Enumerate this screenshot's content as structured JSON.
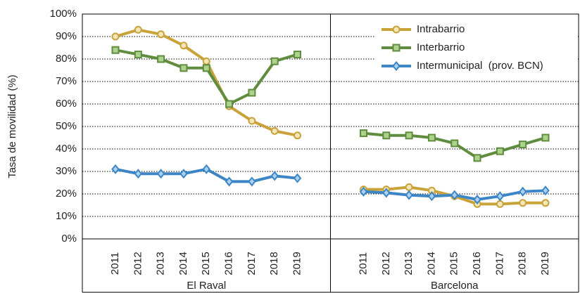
{
  "chart_data": {
    "type": "line",
    "y_label": "Tasa de movilidad (%)",
    "ylim": [
      0,
      100
    ],
    "yticks": [
      {
        "value": 0,
        "label": "0%"
      },
      {
        "value": 10,
        "label": "10%"
      },
      {
        "value": 20,
        "label": "20%"
      },
      {
        "value": 30,
        "label": "30%"
      },
      {
        "value": 40,
        "label": "40%"
      },
      {
        "value": 50,
        "label": "50%"
      },
      {
        "value": 60,
        "label": "60%"
      },
      {
        "value": 70,
        "label": "70%"
      },
      {
        "value": 80,
        "label": "80%"
      },
      {
        "value": 90,
        "label": "90%"
      },
      {
        "value": 100,
        "label": "100%"
      }
    ],
    "grid": true,
    "legend": "top-right",
    "series": [
      {
        "name": "Intrabarrio",
        "color": "#c9a23a",
        "marker": "circle",
        "marker_color": "#f3e6b8"
      },
      {
        "name": "Interbarrio",
        "color": "#5f8c3e",
        "marker": "square",
        "marker_color": "#acd28c"
      },
      {
        "name": "Intermunicipal  (prov. BCN)",
        "color": "#3d86c6",
        "marker": "diamond",
        "marker_color": "#a9d2f2"
      }
    ],
    "groups": [
      {
        "name": "El Raval",
        "categories": [
          "2011",
          "2012",
          "2013",
          "2014",
          "2015",
          "2016",
          "2017",
          "2018",
          "2019"
        ],
        "series": [
          {
            "values": [
              90,
              93,
              91,
              86,
              79,
              59,
              52.5,
              48,
              46
            ]
          },
          {
            "values": [
              84,
              82,
              80,
              76,
              76,
              60,
              65,
              79,
              82
            ]
          },
          {
            "values": [
              31,
              29,
              29,
              29,
              31,
              25.5,
              25.5,
              28,
              27
            ]
          }
        ]
      },
      {
        "name": "Barcelona",
        "categories": [
          "2011",
          "2012",
          "2013",
          "2014",
          "2015",
          "2016",
          "2017",
          "2018",
          "2019"
        ],
        "series": [
          {
            "values": [
              22,
              22,
              23,
              21.5,
              19,
              15.5,
              15.5,
              16,
              16
            ]
          },
          {
            "values": [
              47,
              46,
              46,
              45,
              42.5,
              36,
              39,
              42,
              45
            ]
          },
          {
            "values": [
              21,
              20.5,
              19.5,
              19,
              19.5,
              17.5,
              19,
              21,
              21.5
            ]
          }
        ]
      }
    ]
  }
}
